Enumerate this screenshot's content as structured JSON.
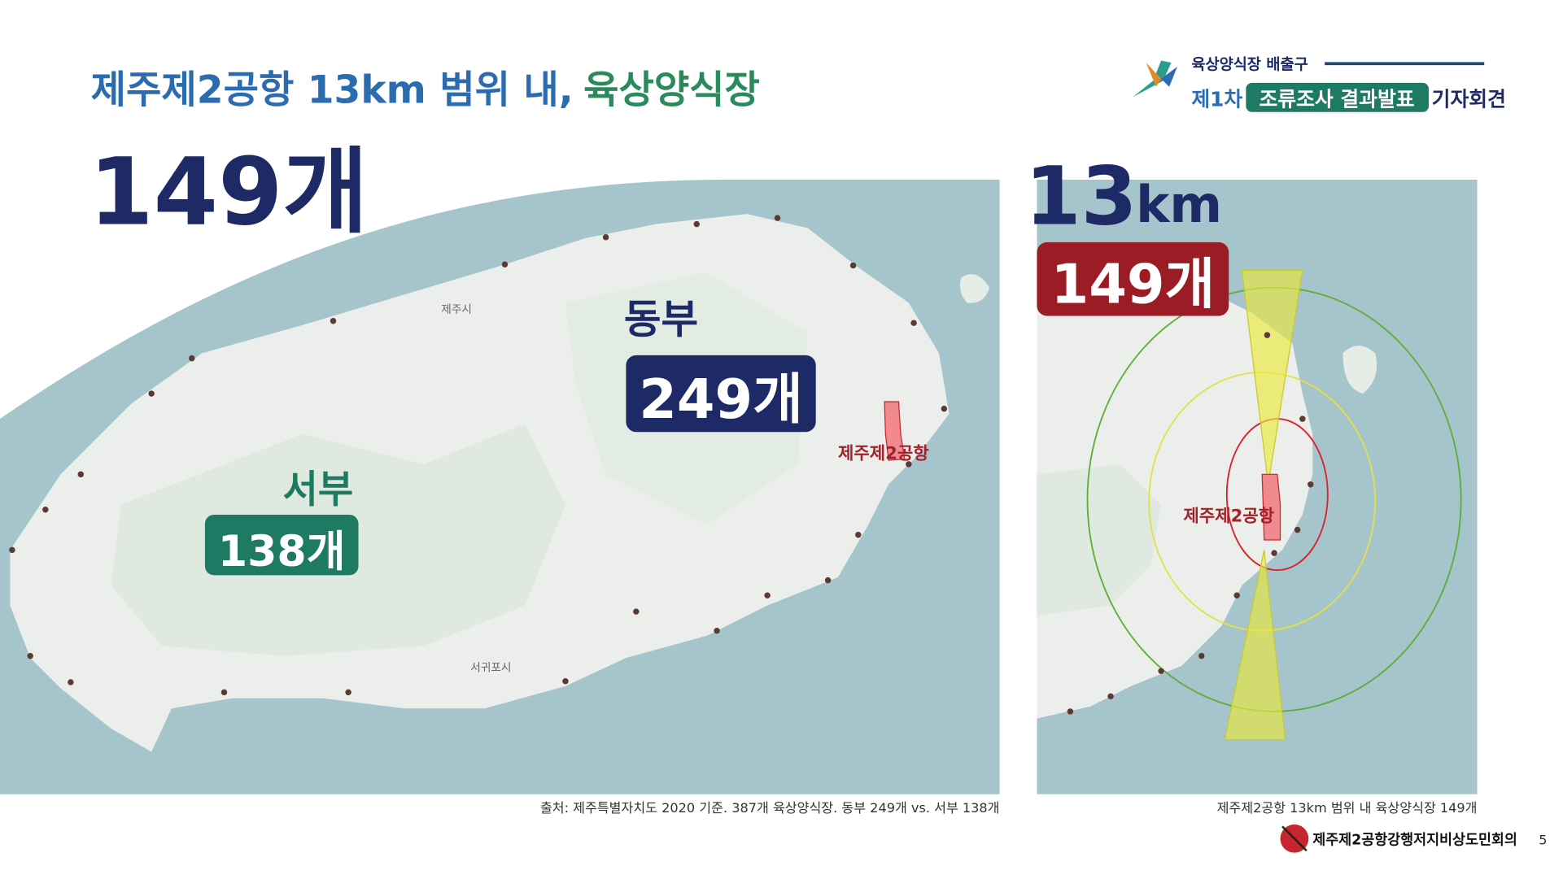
{
  "header": {
    "title_blue": "제주제2공항 13km 범위 내,",
    "title_green": "육상양식장",
    "big_count": "149개",
    "event_top": "육상양식장 배출구",
    "event_prefix": "제1차",
    "event_box": "조류조사 결과발표",
    "event_suffix": "기자회견"
  },
  "left_map": {
    "east_label": "동부",
    "east_count": "249개",
    "west_label": "서부",
    "west_count": "138개",
    "airport_label": "제주제2공항",
    "city_north": "제주시",
    "city_south": "서귀포시",
    "caption": "출처: 제주특별자치도 2020 기준. 387개 육상양식장. 동부 249개 vs. 서부 138개"
  },
  "right_map": {
    "radius_number": "13",
    "radius_unit": "km",
    "count": "149개",
    "airport_label": "제주제2공항",
    "caption": "제주제2공항 13km 범위 내 육상양식장 149개"
  },
  "footer": {
    "organization": "제주제2공항강행저지비상도민회의",
    "page_number": "5"
  }
}
